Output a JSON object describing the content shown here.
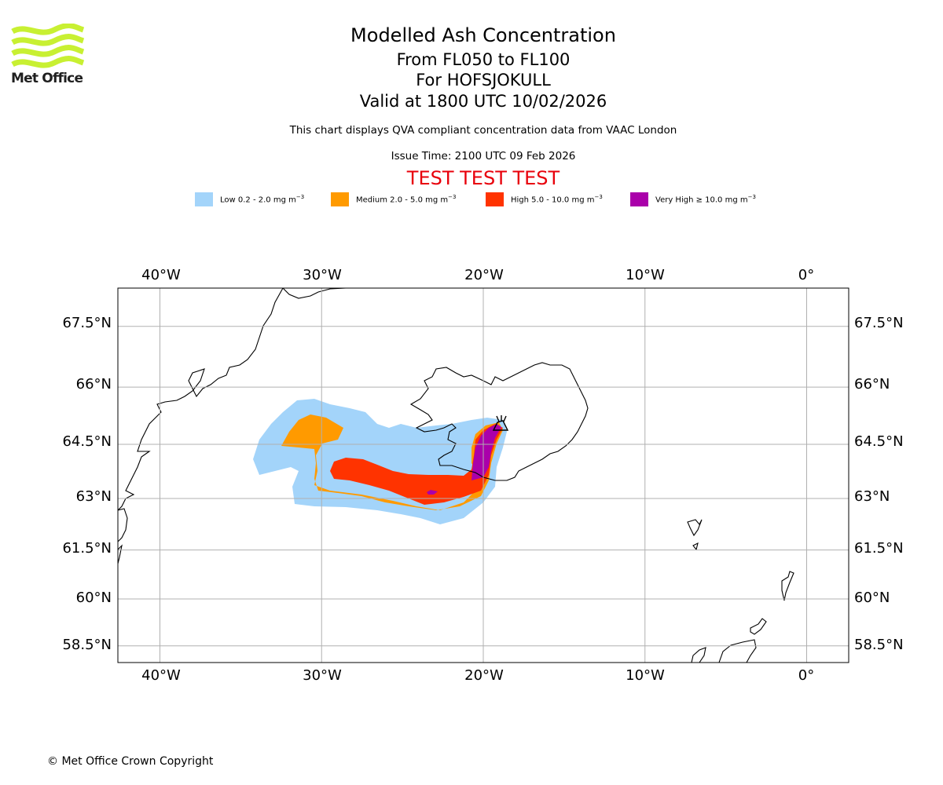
{
  "logo": {
    "text": "Met Office",
    "icon": "met-office-waves-icon",
    "color": "#c8f032"
  },
  "header": {
    "title": "Modelled Ash Concentration",
    "level_range": "From FL050 to FL100",
    "volcano": "For HOFSJOKULL",
    "valid": "Valid at 1800 UTC 10/02/2026",
    "description": "This chart displays QVA compliant concentration data from VAAC London",
    "issue_time": "Issue Time: 2100 UTC 09 Feb 2026",
    "test_banner": "TEST TEST TEST"
  },
  "legend": [
    {
      "label": "Low 0.2 - 2.0 mg m",
      "unit_exp": "−3",
      "color": "#a3d4fa"
    },
    {
      "label": "Medium 2.0 - 5.0 mg m",
      "unit_exp": "−3",
      "color": "#ff9a00"
    },
    {
      "label": "High 5.0 - 10.0 mg m",
      "unit_exp": "−3",
      "color": "#ff3300"
    },
    {
      "label": "Very High  ≥  10.0 mg m",
      "unit_exp": "−3",
      "color": "#aa00aa"
    }
  ],
  "map": {
    "lon_ticks": [
      "40°W",
      "30°W",
      "20°W",
      "10°W",
      "0°"
    ],
    "lat_ticks": [
      "67.5°N",
      "66°N",
      "64.5°N",
      "63°N",
      "61.5°N",
      "60°N",
      "58.5°N"
    ],
    "lon_range": [
      -42.6,
      2.6
    ],
    "lat_range": [
      57.95,
      68.4
    ],
    "grid": true,
    "volcano_marker": "volcano-symbol-icon"
  },
  "footer": {
    "copyright": "© Met Office Crown Copyright"
  }
}
